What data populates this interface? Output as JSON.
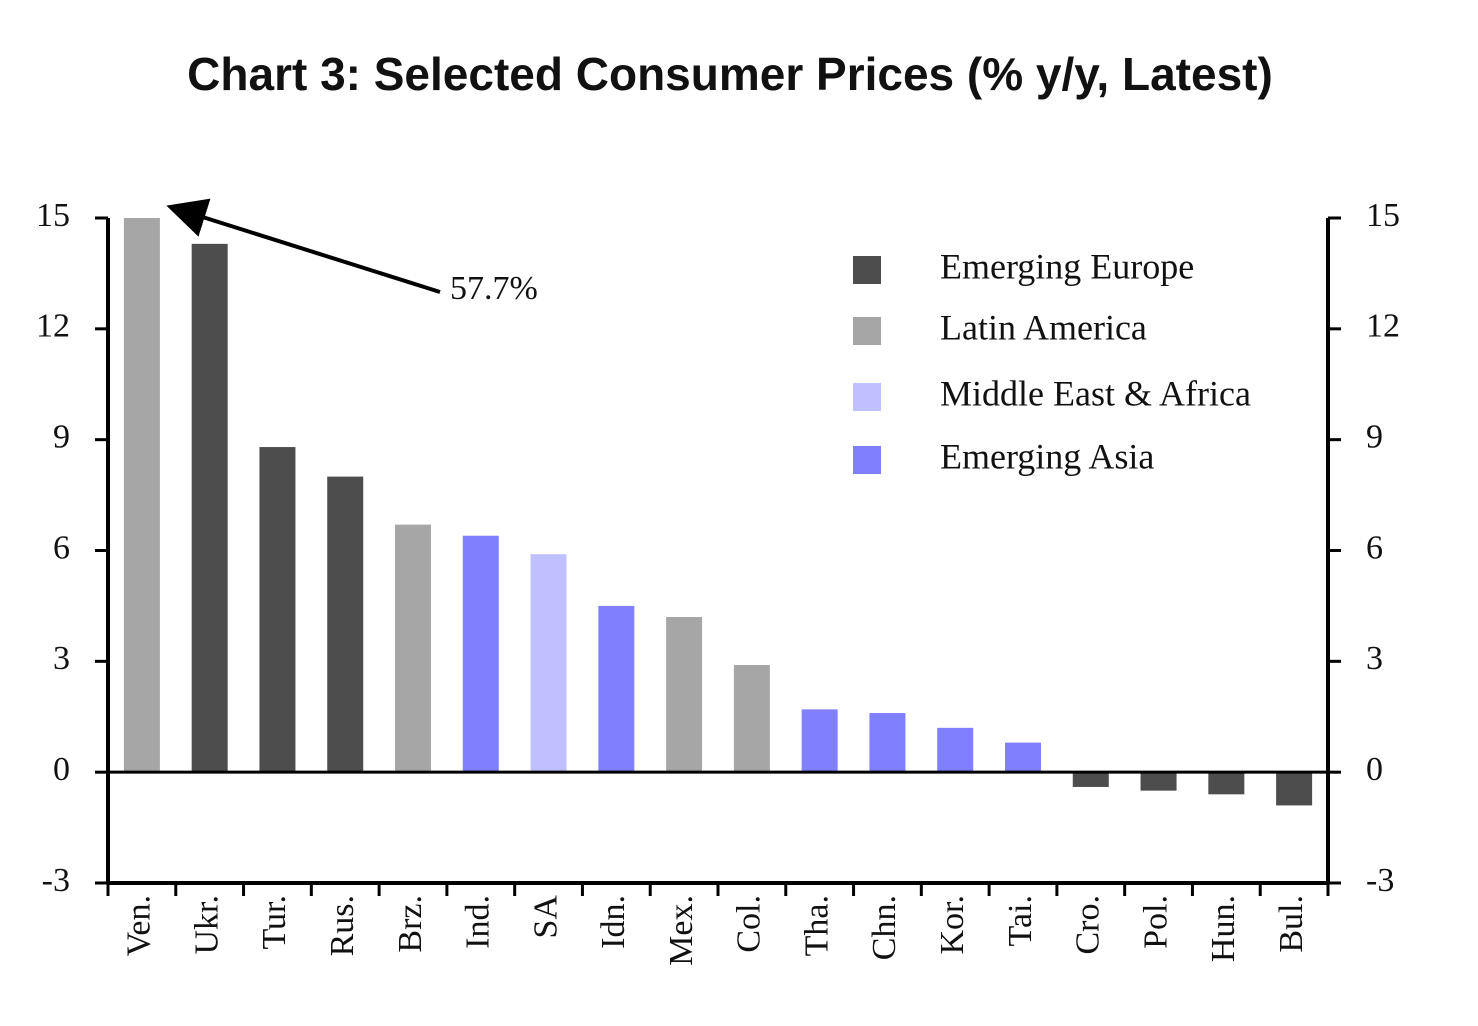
{
  "chart_data": {
    "type": "bar",
    "title": "Chart 3: Selected Consumer Prices (% y/y, Latest)",
    "categories": [
      "Ven.",
      "Ukr.",
      "Tur.",
      "Rus.",
      "Brz.",
      "Ind.",
      "SA",
      "Idn.",
      "Mex.",
      "Col.",
      "Tha.",
      "Chn.",
      "Kor.",
      "Tai.",
      "Cro.",
      "Pol.",
      "Hun.",
      "Bul."
    ],
    "series": [
      {
        "name": "Emerging Europe",
        "color": "#4d4d4d",
        "values": [
          null,
          14.3,
          8.8,
          8.0,
          null,
          null,
          null,
          null,
          null,
          null,
          null,
          null,
          null,
          null,
          -0.4,
          -0.5,
          -0.6,
          -0.9
        ]
      },
      {
        "name": "Latin America",
        "color": "#a6a6a6",
        "values": [
          57.7,
          null,
          null,
          null,
          6.7,
          null,
          null,
          null,
          4.2,
          2.9,
          null,
          null,
          null,
          null,
          null,
          null,
          null,
          null
        ],
        "value_labels": [
          "57.7%",
          null,
          null,
          null,
          null,
          null,
          null,
          null,
          null,
          null,
          null,
          null,
          null,
          null,
          null,
          null,
          null,
          null
        ]
      },
      {
        "name": "Middle East & Africa",
        "color": "#c0c0ff",
        "values": [
          null,
          null,
          null,
          null,
          null,
          null,
          5.9,
          null,
          null,
          null,
          null,
          null,
          null,
          null,
          null,
          null,
          null,
          null
        ]
      },
      {
        "name": "Emerging Asia",
        "color": "#8080ff",
        "values": [
          null,
          null,
          null,
          null,
          null,
          6.4,
          null,
          4.5,
          null,
          null,
          1.7,
          1.6,
          1.2,
          0.8,
          null,
          null,
          null,
          null
        ]
      }
    ],
    "ylim": [
      -3,
      15
    ],
    "yticks": [
      -3,
      0,
      3,
      6,
      9,
      12,
      15
    ],
    "legend": "upper right"
  }
}
